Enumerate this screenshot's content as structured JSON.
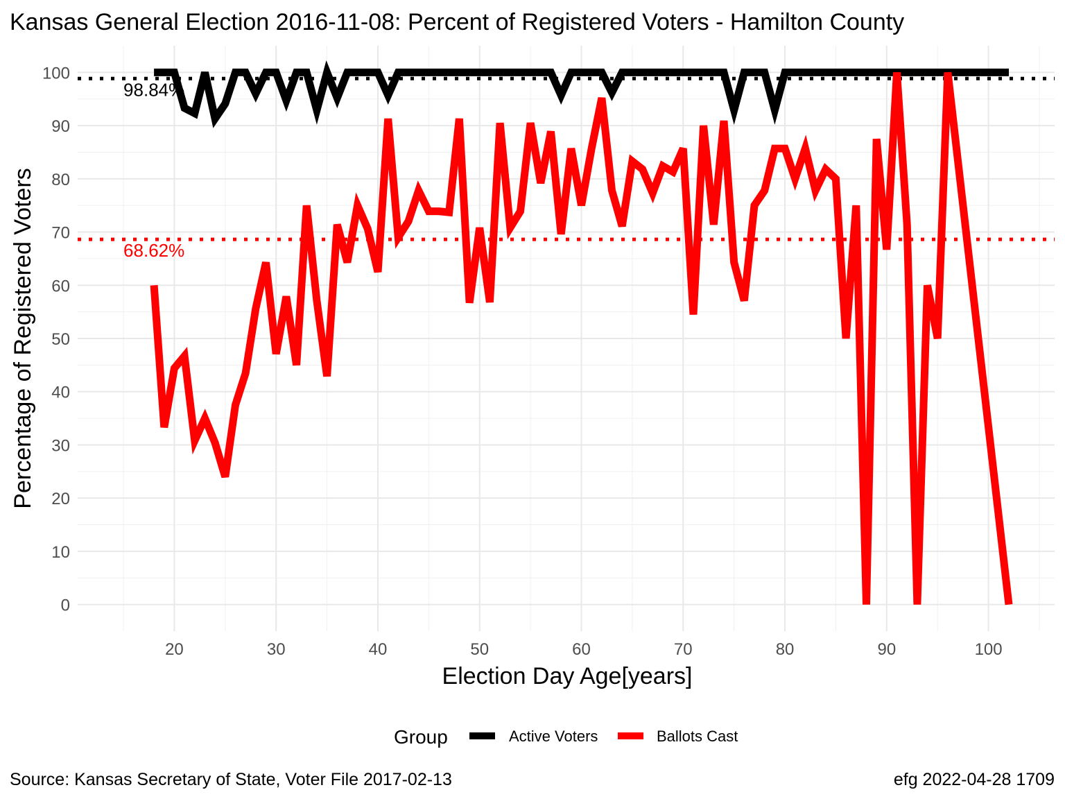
{
  "chart_data": {
    "type": "line",
    "title": "Kansas General Election 2016-11-08:  Percent of Registered Voters - Hamilton County",
    "xlabel": "Election Day Age[years]",
    "ylabel": "Percentage of Registered Voters",
    "xlim": [
      10.5,
      106.5
    ],
    "ylim": [
      -5,
      105
    ],
    "x_ticks": [
      20,
      30,
      40,
      50,
      60,
      70,
      80,
      90,
      100
    ],
    "y_ticks": [
      0,
      10,
      20,
      30,
      40,
      50,
      60,
      70,
      80,
      90,
      100
    ],
    "grid": true,
    "legend": {
      "title": "Group",
      "position": "bottom",
      "entries": [
        "Active Voters",
        "Ballots Cast"
      ]
    },
    "reference_lines": [
      {
        "label": "98.84%",
        "value": 98.84,
        "color": "#000000",
        "style": "dotted"
      },
      {
        "label": "68.62%",
        "value": 68.62,
        "color": "#ff0000",
        "style": "dotted"
      }
    ],
    "series": [
      {
        "name": "Active Voters",
        "color": "#000000",
        "points": [
          [
            18,
            100
          ],
          [
            19,
            100
          ],
          [
            20,
            100
          ],
          [
            21,
            93.3
          ],
          [
            22,
            92.3
          ],
          [
            23,
            100
          ],
          [
            24,
            91.3
          ],
          [
            25,
            94.1
          ],
          [
            26,
            100
          ],
          [
            27,
            100
          ],
          [
            28,
            96
          ],
          [
            29,
            100
          ],
          [
            30,
            100
          ],
          [
            31,
            94.7
          ],
          [
            32,
            100
          ],
          [
            33,
            100
          ],
          [
            34,
            92.9
          ],
          [
            35,
            100
          ],
          [
            36,
            95.2
          ],
          [
            37,
            100
          ],
          [
            38,
            100
          ],
          [
            39,
            100
          ],
          [
            40,
            100
          ],
          [
            41,
            95.7
          ],
          [
            42,
            100
          ],
          [
            43,
            100
          ],
          [
            44,
            100
          ],
          [
            45,
            100
          ],
          [
            46,
            100
          ],
          [
            47,
            100
          ],
          [
            48,
            100
          ],
          [
            49,
            100
          ],
          [
            50,
            100
          ],
          [
            51,
            100
          ],
          [
            52,
            100
          ],
          [
            53,
            100
          ],
          [
            54,
            100
          ],
          [
            55,
            100
          ],
          [
            56,
            100
          ],
          [
            57,
            100
          ],
          [
            58,
            95.7
          ],
          [
            59,
            100
          ],
          [
            60,
            100
          ],
          [
            61,
            100
          ],
          [
            62,
            100
          ],
          [
            63,
            96.2
          ],
          [
            64,
            100
          ],
          [
            65,
            100
          ],
          [
            66,
            100
          ],
          [
            67,
            100
          ],
          [
            68,
            100
          ],
          [
            69,
            100
          ],
          [
            70,
            100
          ],
          [
            71,
            100
          ],
          [
            72,
            100
          ],
          [
            73,
            100
          ],
          [
            74,
            100
          ],
          [
            75,
            92.9
          ],
          [
            76,
            100
          ],
          [
            77,
            100
          ],
          [
            78,
            100
          ],
          [
            79,
            92.9
          ],
          [
            80,
            100
          ],
          [
            81,
            100
          ],
          [
            82,
            100
          ],
          [
            83,
            100
          ],
          [
            84,
            100
          ],
          [
            85,
            100
          ],
          [
            86,
            100
          ],
          [
            87,
            100
          ],
          [
            88,
            100
          ],
          [
            89,
            100
          ],
          [
            90,
            100
          ],
          [
            91,
            100
          ],
          [
            92,
            100
          ],
          [
            93,
            100
          ],
          [
            94,
            100
          ],
          [
            95,
            100
          ],
          [
            96,
            100
          ],
          [
            102,
            100
          ]
        ]
      },
      {
        "name": "Ballots Cast",
        "color": "#ff0000",
        "points": [
          [
            18,
            60
          ],
          [
            19,
            33.3
          ],
          [
            20,
            44.4
          ],
          [
            21,
            46.7
          ],
          [
            22,
            30.8
          ],
          [
            23,
            35
          ],
          [
            24,
            30.4
          ],
          [
            25,
            24
          ],
          [
            26,
            37.5
          ],
          [
            27,
            43.5
          ],
          [
            28,
            55.6
          ],
          [
            29,
            64.3
          ],
          [
            30,
            47.1
          ],
          [
            31,
            57.9
          ],
          [
            32,
            45
          ],
          [
            33,
            75
          ],
          [
            34,
            57.1
          ],
          [
            35,
            42.9
          ],
          [
            36,
            71.4
          ],
          [
            37,
            64.3
          ],
          [
            38,
            75
          ],
          [
            39,
            70.6
          ],
          [
            40,
            62.5
          ],
          [
            41,
            91.3
          ],
          [
            42,
            69
          ],
          [
            43,
            72
          ],
          [
            44,
            77.8
          ],
          [
            45,
            73.9
          ],
          [
            46,
            73.9
          ],
          [
            47,
            73.7
          ],
          [
            48,
            91.3
          ],
          [
            49,
            56.7
          ],
          [
            50,
            70.8
          ],
          [
            51,
            56.8
          ],
          [
            52,
            90.5
          ],
          [
            53,
            70.8
          ],
          [
            54,
            73.9
          ],
          [
            55,
            90.5
          ],
          [
            56,
            79.2
          ],
          [
            57,
            88.9
          ],
          [
            58,
            69.6
          ],
          [
            59,
            85.7
          ],
          [
            60,
            75
          ],
          [
            61,
            85.7
          ],
          [
            62,
            95.2
          ],
          [
            63,
            77.8
          ],
          [
            64,
            71.1
          ],
          [
            65,
            83.3
          ],
          [
            66,
            81.8
          ],
          [
            67,
            77.3
          ],
          [
            68,
            82.4
          ],
          [
            69,
            81.3
          ],
          [
            70,
            85.7
          ],
          [
            71,
            54.5
          ],
          [
            72,
            90
          ],
          [
            73,
            71.4
          ],
          [
            74,
            90.9
          ],
          [
            75,
            64.3
          ],
          [
            76,
            57.1
          ],
          [
            77,
            75
          ],
          [
            78,
            77.8
          ],
          [
            79,
            85.7
          ],
          [
            80,
            85.7
          ],
          [
            81,
            80
          ],
          [
            82,
            85.7
          ],
          [
            83,
            77.8
          ],
          [
            84,
            81.8
          ],
          [
            85,
            80
          ],
          [
            86,
            50
          ],
          [
            87,
            75
          ],
          [
            88,
            0
          ],
          [
            89,
            87.5
          ],
          [
            90,
            66.7
          ],
          [
            91,
            100
          ],
          [
            92,
            71.4
          ],
          [
            93,
            0
          ],
          [
            94,
            60
          ],
          [
            95,
            50
          ],
          [
            96,
            100
          ],
          [
            102,
            0
          ]
        ]
      }
    ]
  },
  "caption": {
    "source": "Source:  Kansas Secretary of State, Voter File  2017-02-13",
    "credit": "efg 2022-04-28 1709"
  }
}
